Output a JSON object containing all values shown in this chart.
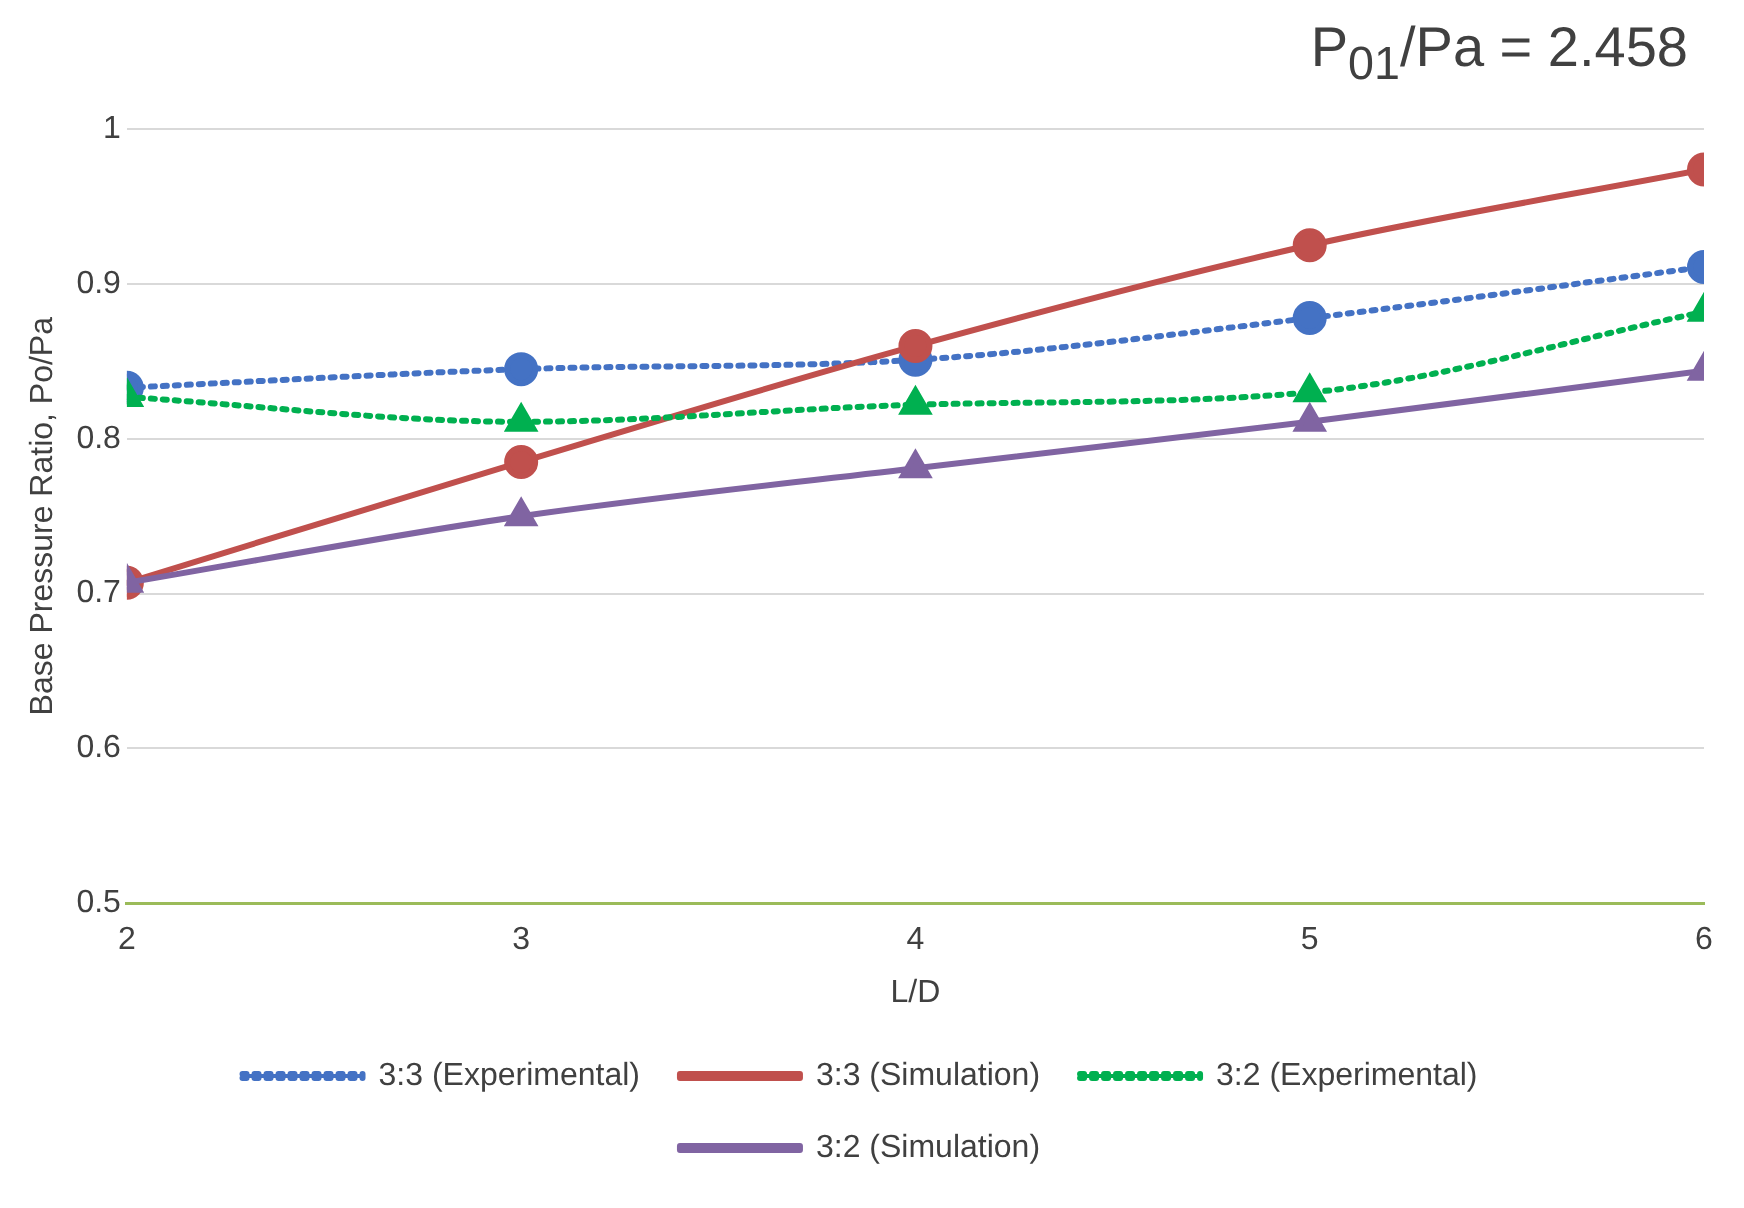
{
  "chart_data": {
    "type": "line",
    "title": "P$_{01}$/Pa = 2.458",
    "xlabel": "L/D",
    "ylabel": "Base Pressure Ratio, Po/Pa",
    "x": [
      2,
      3,
      4,
      5,
      6
    ],
    "xlim": [
      2,
      6
    ],
    "xticks": [
      2,
      3,
      4,
      5,
      6
    ],
    "ylim": [
      0.5,
      1
    ],
    "yticks": [
      0.5,
      0.6,
      0.7,
      0.8,
      0.9,
      1
    ],
    "grid": "y",
    "legend": "bottom",
    "series": [
      {
        "name": "3:3 (Experimental)",
        "color": "#4472c4",
        "values": [
          0.833,
          0.845,
          0.851,
          0.878,
          0.911
        ],
        "marker": "circle",
        "line_style": "dotted"
      },
      {
        "name": "3:3 (Simulation)",
        "color": "#c0504d",
        "values": [
          0.707,
          0.785,
          0.86,
          0.925,
          0.974
        ],
        "marker": "circle",
        "line_style": "solid"
      },
      {
        "name": "3:2 (Experimental)",
        "color": "#00b050",
        "values": [
          0.827,
          0.811,
          0.822,
          0.83,
          0.882
        ],
        "marker": "triangle",
        "line_style": "dotted"
      },
      {
        "name": "3:2 (Simulation)",
        "color": "#8064a2",
        "values": [
          0.707,
          0.75,
          0.781,
          0.811,
          0.844
        ],
        "marker": "triangle",
        "line_style": "solid"
      }
    ]
  }
}
